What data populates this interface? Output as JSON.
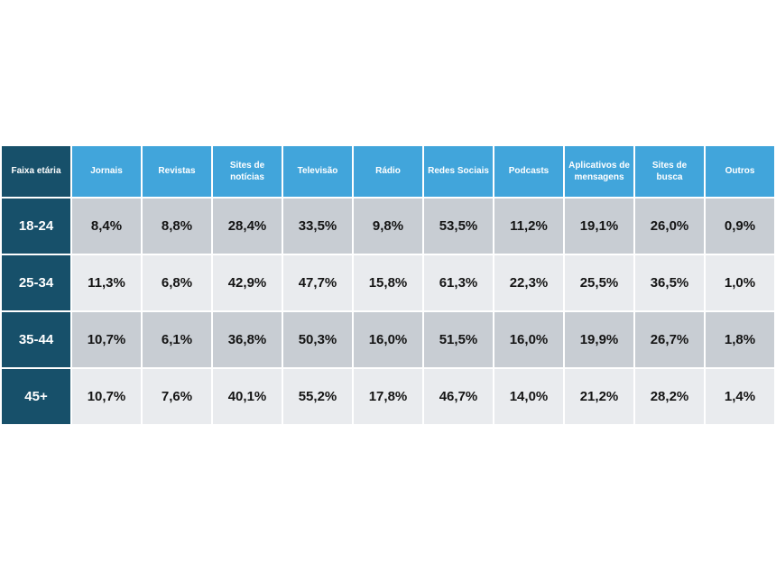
{
  "colors": {
    "header_bg": "#41a5db",
    "first_column_bg": "#17506a",
    "row_dark_bg": "#c8cdd3",
    "row_light_bg": "#e9ebee",
    "header_text": "#ffffff",
    "value_text": "#141414",
    "grid_border": "#ffffff"
  },
  "chart_data": {
    "type": "table",
    "title": "",
    "columns": [
      "Faixa etária",
      "Jornais",
      "Revistas",
      "Sites de notícias",
      "Televisão",
      "Rádio",
      "Redes Sociais",
      "Podcasts",
      "Aplicativos de mensagens",
      "Sites de busca",
      "Outros"
    ],
    "rows": [
      {
        "label": "18-24",
        "values": [
          "8,4%",
          "8,8%",
          "28,4%",
          "33,5%",
          "9,8%",
          "53,5%",
          "11,2%",
          "19,1%",
          "26,0%",
          "0,9%"
        ]
      },
      {
        "label": "25-34",
        "values": [
          "11,3%",
          "6,8%",
          "42,9%",
          "47,7%",
          "15,8%",
          "61,3%",
          "22,3%",
          "25,5%",
          "36,5%",
          "1,0%"
        ]
      },
      {
        "label": "35-44",
        "values": [
          "10,7%",
          "6,1%",
          "36,8%",
          "50,3%",
          "16,0%",
          "51,5%",
          "16,0%",
          "19,9%",
          "26,7%",
          "1,8%"
        ]
      },
      {
        "label": "45+",
        "values": [
          "10,7%",
          "7,6%",
          "40,1%",
          "55,2%",
          "17,8%",
          "46,7%",
          "14,0%",
          "21,2%",
          "28,2%",
          "1,4%"
        ]
      }
    ]
  }
}
